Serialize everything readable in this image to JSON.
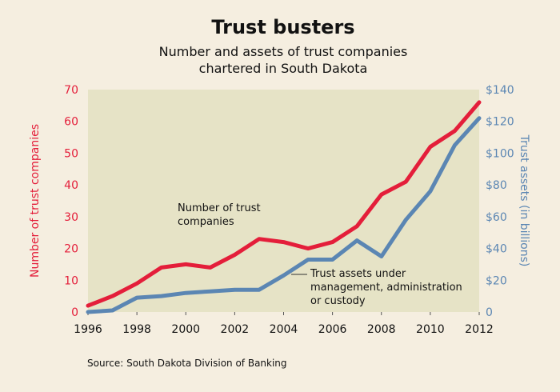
{
  "chart_data": {
    "type": "line",
    "title": "Trust busters",
    "subtitle_lines": [
      "Number and assets of trust companies",
      "chartered in South Dakota"
    ],
    "x": [
      1996,
      1997,
      1998,
      1999,
      2000,
      2001,
      2002,
      2003,
      2004,
      2005,
      2006,
      2007,
      2008,
      2009,
      2010,
      2011,
      2012
    ],
    "xticks": [
      "1996",
      "1998",
      "2000",
      "2002",
      "2004",
      "2006",
      "2008",
      "2010",
      "2012"
    ],
    "xlim": [
      1996,
      2012
    ],
    "left_axis": {
      "label": "Number of trust companies",
      "ylim": [
        0,
        70
      ],
      "ticks": [
        "0",
        "10",
        "20",
        "30",
        "40",
        "50",
        "60",
        "70"
      ],
      "color": "#e41e3a"
    },
    "right_axis": {
      "label": "Trust assets (in billions)",
      "ylim": [
        0,
        140
      ],
      "ticks": [
        "0",
        "$20",
        "$40",
        "$60",
        "$80",
        "$100",
        "$120",
        "$140"
      ],
      "color": "#5b86b3"
    },
    "series": [
      {
        "name": "Number of trust companies",
        "axis": "left",
        "color": "#e41e3a",
        "values": [
          2,
          5,
          9,
          14,
          15,
          14,
          18,
          23,
          22,
          20,
          22,
          27,
          37,
          41,
          52,
          57,
          66
        ]
      },
      {
        "name": "Trust assets under management, administration or custody",
        "axis": "right",
        "color": "#5b86b3",
        "values": [
          0,
          1,
          9,
          10,
          12,
          13,
          14,
          14,
          23,
          33,
          33,
          45,
          35,
          58,
          76,
          105,
          122
        ]
      }
    ],
    "annotations": {
      "number": [
        "Number of trust",
        "companies"
      ],
      "assets": [
        "Trust assets under",
        "management, administration",
        "or custody"
      ]
    },
    "grid": false,
    "plot_background": "#e6e3c6",
    "source": "Source: South Dakota Division of Banking"
  }
}
